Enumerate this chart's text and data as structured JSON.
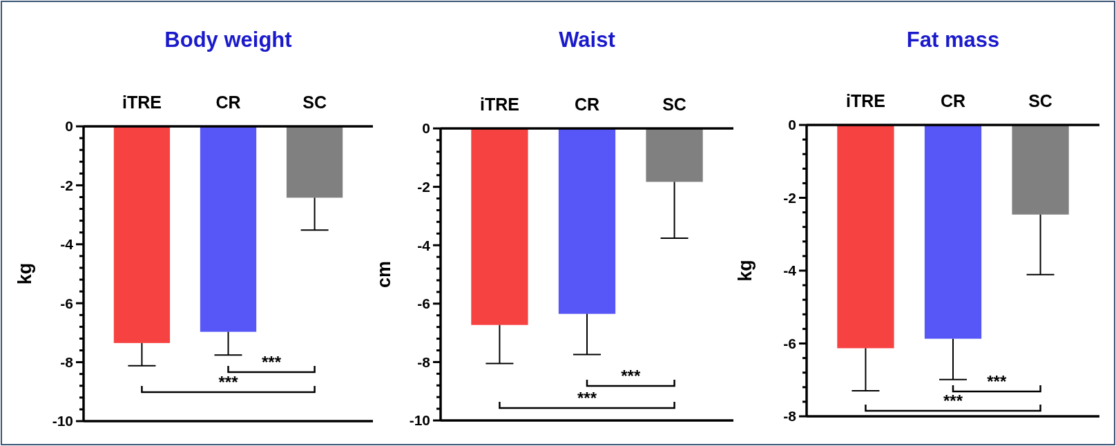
{
  "chart_data": [
    {
      "type": "bar",
      "title": "Body weight",
      "ylabel": "kg",
      "categories": [
        "iTRE",
        "CR",
        "SC"
      ],
      "values": [
        -7.35,
        -6.97,
        -2.42
      ],
      "colors": [
        "#f74242",
        "#5757f7",
        "#808080"
      ],
      "errors": [
        [
          -8.12,
          -7.35
        ],
        [
          -7.76,
          -6.97
        ],
        [
          -3.52,
          -2.42
        ]
      ],
      "ylim": [
        -10,
        0
      ],
      "yticks": [
        0,
        {
          "value": -0.4,
          "label": null
        },
        {
          "value": -0.8,
          "label": null
        },
        {
          "value": -1.2,
          "label": null
        },
        {
          "value": -1.6,
          "label": null
        },
        -2,
        {
          "value": -2.4,
          "label": null
        },
        {
          "value": -2.8,
          "label": null
        },
        {
          "value": -3.2,
          "label": null
        },
        {
          "value": -3.6,
          "label": null
        },
        -4,
        {
          "value": -4.4,
          "label": null
        },
        {
          "value": -4.8,
          "label": null
        },
        {
          "value": -5.2,
          "label": null
        },
        {
          "value": -5.6,
          "label": null
        },
        -6,
        {
          "value": -6.4,
          "label": null
        },
        {
          "value": -6.8,
          "label": null
        },
        {
          "value": -7.2,
          "label": null
        },
        {
          "value": -7.6,
          "label": null
        },
        -8,
        {
          "value": -8.4,
          "label": null
        },
        {
          "value": -8.8,
          "label": null
        },
        {
          "value": -9.2,
          "label": null
        },
        {
          "value": -9.6,
          "label": null
        },
        -10
      ],
      "annotations": [
        "***",
        "***"
      ]
    },
    {
      "type": "bar",
      "title": "Waist",
      "ylabel": "cm",
      "categories": [
        "iTRE",
        "CR",
        "SC"
      ],
      "values": [
        -6.73,
        -6.35,
        -1.83
      ],
      "colors": [
        "#f74242",
        "#5757f7",
        "#808080"
      ],
      "errors": [
        [
          -8.05,
          -6.73
        ],
        [
          -7.74,
          -6.35
        ],
        [
          -3.76,
          -1.83
        ]
      ],
      "ylim": [
        -10,
        0
      ],
      "yticks": [
        0,
        {
          "value": -0.4,
          "label": null
        },
        {
          "value": -0.8,
          "label": null
        },
        {
          "value": -1.2,
          "label": null
        },
        {
          "value": -1.6,
          "label": null
        },
        -2,
        {
          "value": -2.4,
          "label": null
        },
        {
          "value": -2.8,
          "label": null
        },
        {
          "value": -3.2,
          "label": null
        },
        {
          "value": -3.6,
          "label": null
        },
        -4,
        {
          "value": -4.4,
          "label": null
        },
        {
          "value": -4.8,
          "label": null
        },
        {
          "value": -5.2,
          "label": null
        },
        {
          "value": -5.6,
          "label": null
        },
        -6,
        {
          "value": -6.4,
          "label": null
        },
        {
          "value": -6.8,
          "label": null
        },
        {
          "value": -7.2,
          "label": null
        },
        {
          "value": -7.6,
          "label": null
        },
        -8,
        {
          "value": -8.4,
          "label": null
        },
        {
          "value": -8.8,
          "label": null
        },
        {
          "value": -9.2,
          "label": null
        },
        {
          "value": -9.6,
          "label": null
        },
        -10
      ],
      "annotations": [
        "***",
        "***"
      ]
    },
    {
      "type": "bar",
      "title": "Fat mass",
      "ylabel": "kg",
      "categories": [
        "iTRE",
        "CR",
        "SC"
      ],
      "values": [
        -6.13,
        -5.87,
        -2.46
      ],
      "colors": [
        "#f74242",
        "#5757f7",
        "#808080"
      ],
      "errors": [
        [
          -7.3,
          -6.13
        ],
        [
          -6.99,
          -5.87
        ],
        [
          -4.11,
          -2.46
        ]
      ],
      "ylim": [
        -8,
        0
      ],
      "yticks": [
        0,
        {
          "value": -0.4,
          "label": null
        },
        {
          "value": -0.8,
          "label": null
        },
        {
          "value": -1.2,
          "label": null
        },
        {
          "value": -1.6,
          "label": null
        },
        -2,
        {
          "value": -2.4,
          "label": null
        },
        {
          "value": -2.8,
          "label": null
        },
        {
          "value": -3.2,
          "label": null
        },
        {
          "value": -3.6,
          "label": null
        },
        -4,
        {
          "value": -4.4,
          "label": null
        },
        {
          "value": -4.8,
          "label": null
        },
        {
          "value": -5.2,
          "label": null
        },
        {
          "value": -5.6,
          "label": null
        },
        -6,
        {
          "value": -6.4,
          "label": null
        },
        {
          "value": -6.8,
          "label": null
        },
        {
          "value": -7.2,
          "label": null
        },
        {
          "value": -7.6,
          "label": null
        },
        -8
      ],
      "annotations": [
        "***",
        "***"
      ]
    }
  ]
}
